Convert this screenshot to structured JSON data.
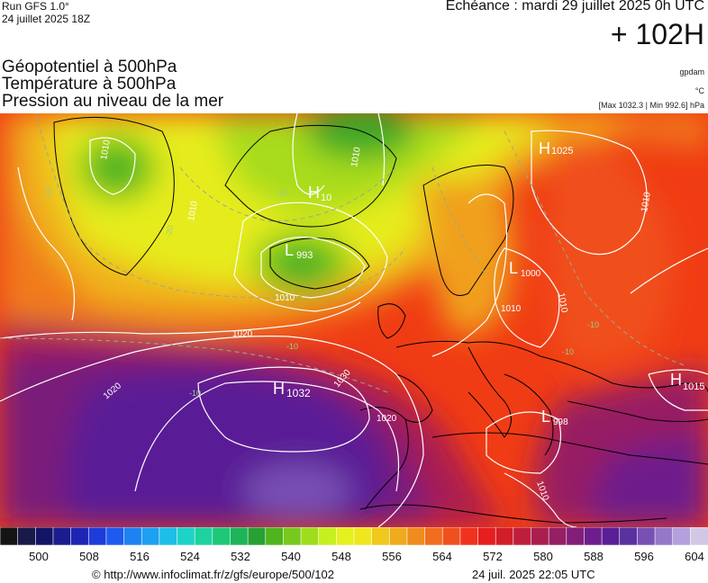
{
  "header": {
    "run": "Run GFS 1.0°",
    "run_date": "24 juillet 2025 18Z",
    "echeance": "Echéance : mardi 29 juillet 2025 0h UTC",
    "lead": "+ 102H"
  },
  "titles": {
    "line1": "Géopotentiel à 500hPa",
    "line2": "Température à 500hPa",
    "line3": "Pression au niveau de la mer"
  },
  "units": {
    "geo": "gpdam",
    "temp": "°C",
    "pressure": "[Max 1032.3 | Min 992.6] hPa"
  },
  "map": {
    "highs": [
      {
        "label": "H",
        "value": "1032"
      },
      {
        "label": "H",
        "value": "1025"
      },
      {
        "label": "H",
        "value": "1015"
      },
      {
        "label": "H",
        "value": "10"
      }
    ],
    "lows": [
      {
        "label": "L",
        "value": "993"
      },
      {
        "label": "L",
        "value": "1000"
      },
      {
        "label": "L",
        "value": "998"
      }
    ],
    "isobar_labels": [
      "1010",
      "1010",
      "1010",
      "1010",
      "1010",
      "1010",
      "1010",
      "1020",
      "1020",
      "1020",
      "1030",
      "1010"
    ],
    "isotherm_labels": [
      "-20",
      "-20",
      "-20",
      "-10",
      "-10",
      "-10",
      "-10"
    ]
  },
  "scale": {
    "colors": [
      "#141414",
      "#1a1a4a",
      "#141466",
      "#1c1c8c",
      "#1e24b4",
      "#1e3cd8",
      "#1e5af0",
      "#1e82f0",
      "#1ea0f0",
      "#1ebee6",
      "#1ed2c8",
      "#1ed2a0",
      "#1ec878",
      "#1eb45a",
      "#28a032",
      "#50b41e",
      "#78c81e",
      "#a0dc1e",
      "#c8f01e",
      "#e6f01e",
      "#f0e61e",
      "#f0c81e",
      "#f0aa1e",
      "#f08c1e",
      "#f06e1e",
      "#f0501e",
      "#f0321e",
      "#e61e1e",
      "#d21e28",
      "#be1e3c",
      "#aa1e50",
      "#961e64",
      "#821e78",
      "#6e1e8c",
      "#5a1e96",
      "#5a32a0",
      "#7850b4",
      "#9678c8",
      "#b4a0dc",
      "#d2c8e6"
    ],
    "ticks": [
      "500",
      "508",
      "516",
      "524",
      "532",
      "540",
      "548",
      "556",
      "564",
      "572",
      "580",
      "588",
      "596",
      "604"
    ]
  },
  "footer": {
    "url": "© http://www.infoclimat.fr/z/gfs/europe/500/102",
    "timestamp": "24 juil. 2025 22:05 UTC"
  }
}
